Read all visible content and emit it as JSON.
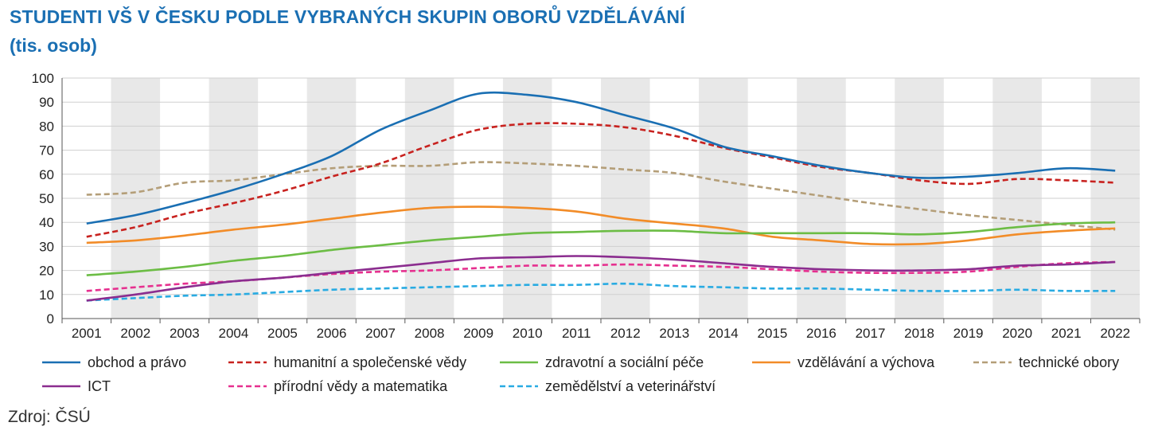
{
  "header": {
    "title": "STUDENTI VŠ V ČESKU PODLE VYBRANÝCH SKUPIN OBORŮ VZDĚLÁVÁNÍ",
    "subtitle": "(tis. osob)"
  },
  "source": "Zdroj: ČSÚ",
  "chart_data": {
    "type": "line",
    "title": "STUDENTI VŠ V ČESKU PODLE VYBRANÝCH SKUPIN OBORŮ VZDĚLÁVÁNÍ",
    "subtitle": "(tis. osob)",
    "x": [
      "2001",
      "2002",
      "2003",
      "2004",
      "2005",
      "2006",
      "2007",
      "2008",
      "2009",
      "2010",
      "2011",
      "2012",
      "2013",
      "2014",
      "2015",
      "2016",
      "2017",
      "2018",
      "2019",
      "2020",
      "2021",
      "2022"
    ],
    "ylim": [
      0,
      100
    ],
    "yticks": [
      0,
      10,
      20,
      30,
      40,
      50,
      60,
      70,
      80,
      90,
      100
    ],
    "grid": "horizontal gridlines, alternating shaded year bands",
    "legend_position": "bottom",
    "series": [
      {
        "name": "obchod a právo",
        "color": "#1a6fb3",
        "dash": "solid",
        "values": [
          39.5,
          43,
          48,
          53.5,
          60,
          67.5,
          78.5,
          86.5,
          93.5,
          93,
          90,
          84.5,
          79,
          71.5,
          67.5,
          63.5,
          60.5,
          58.5,
          59,
          60.5,
          62.5,
          61.5
        ]
      },
      {
        "name": "humanitní a společenské vědy",
        "color": "#c8221f",
        "dash": "dashed",
        "values": [
          34,
          38,
          43.5,
          48,
          53,
          59,
          64.5,
          72,
          78.5,
          81,
          81,
          79.5,
          76,
          71,
          67,
          63,
          60.5,
          57.5,
          56,
          58,
          57.5,
          56.5
        ]
      },
      {
        "name": "zdravotní a sociální péče",
        "color": "#6cbd45",
        "dash": "solid",
        "values": [
          18,
          19.5,
          21.5,
          24,
          26,
          28.5,
          30.5,
          32.5,
          34,
          35.5,
          36,
          36.5,
          36.5,
          35.5,
          35.5,
          35.5,
          35.5,
          35,
          36,
          38,
          39.5,
          40
        ]
      },
      {
        "name": "vzdělávání a výchova",
        "color": "#f28c28",
        "dash": "solid",
        "values": [
          31.5,
          32.5,
          34.5,
          37,
          39,
          41.5,
          44,
          46,
          46.5,
          46,
          44.5,
          41.5,
          39.5,
          37.5,
          34,
          32.5,
          31,
          31,
          32.5,
          35,
          36.5,
          37.5
        ]
      },
      {
        "name": "technické obory",
        "color": "#b49e78",
        "dash": "dashed",
        "values": [
          51.5,
          52.5,
          56.5,
          57.5,
          60,
          62.5,
          63.5,
          63.5,
          65,
          64.5,
          63.5,
          62,
          60.5,
          57,
          54,
          51,
          48,
          45.5,
          43,
          41,
          39,
          37
        ]
      },
      {
        "name": "ICT",
        "color": "#8b2d8f",
        "dash": "solid",
        "values": [
          7.5,
          10,
          13,
          15.5,
          17,
          19,
          21,
          23,
          25,
          25.5,
          26,
          25.5,
          24.5,
          23,
          21.5,
          20.5,
          20,
          20,
          20.5,
          22,
          22.5,
          23.5
        ]
      },
      {
        "name": "přírodní vědy a matematika",
        "color": "#e6308f",
        "dash": "dashed",
        "values": [
          11.5,
          13,
          14.5,
          15.5,
          17,
          18.5,
          19.5,
          20,
          21,
          22,
          22,
          22.5,
          22,
          21.5,
          20.5,
          19.5,
          19,
          19,
          19.5,
          21.5,
          23,
          23.5
        ]
      },
      {
        "name": "zemědělství a veterinářství",
        "color": "#29abe2",
        "dash": "dashed",
        "values": [
          7.5,
          8.5,
          9.5,
          10,
          11,
          12,
          12.5,
          13,
          13.5,
          14,
          14,
          14.5,
          13.5,
          13,
          12.5,
          12.5,
          12,
          11.5,
          11.5,
          12,
          11.5,
          11.5
        ]
      }
    ]
  }
}
